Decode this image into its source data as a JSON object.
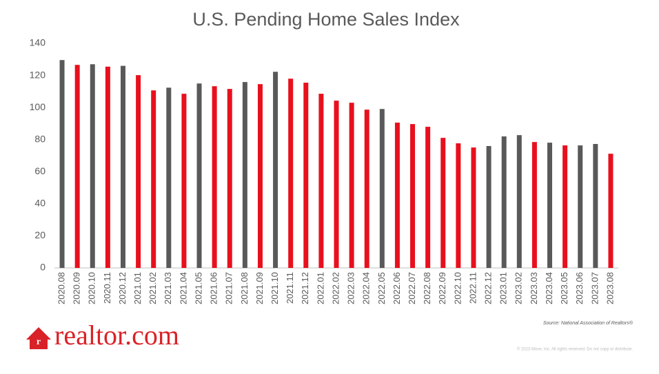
{
  "chart_data": {
    "type": "bar",
    "title": "U.S. Pending Home Sales Index",
    "categories": [
      "2020.08",
      "2020.09",
      "2020.10",
      "2020.11",
      "2020.12",
      "2021.01",
      "2021.02",
      "2021.03",
      "2021.04",
      "2021.05",
      "2021.06",
      "2021.07",
      "2021.08",
      "2021.09",
      "2021.10",
      "2021.11",
      "2021.12",
      "2022.01",
      "2022.02",
      "2022.03",
      "2022.04",
      "2022.05",
      "2022.06",
      "2022.07",
      "2022.08",
      "2022.09",
      "2022.10",
      "2022.11",
      "2022.12",
      "2023.01",
      "2023.02",
      "2023.03",
      "2023.04",
      "2023.05",
      "2023.06",
      "2023.07",
      "2023.08"
    ],
    "values": [
      129.6,
      126.6,
      127,
      125.5,
      126,
      120.2,
      110.7,
      112.4,
      108.6,
      115,
      113.3,
      111.6,
      115.9,
      114.6,
      122.3,
      118,
      115.5,
      108.6,
      104.3,
      103,
      98.7,
      99.1,
      90.6,
      89.7,
      88,
      81.1,
      77.7,
      75.1,
      76,
      82,
      82.8,
      78.5,
      78.1,
      76.4,
      76.4,
      77.3,
      71.2
    ],
    "colors": [
      "#595959",
      "#e8101d",
      "#595959",
      "#e8101d",
      "#595959",
      "#e8101d",
      "#e8101d",
      "#595959",
      "#e8101d",
      "#595959",
      "#e8101d",
      "#e8101d",
      "#595959",
      "#e8101d",
      "#595959",
      "#e8101d",
      "#e8101d",
      "#e8101d",
      "#e8101d",
      "#e8101d",
      "#e8101d",
      "#595959",
      "#e8101d",
      "#e8101d",
      "#e8101d",
      "#e8101d",
      "#e8101d",
      "#e8101d",
      "#595959",
      "#595959",
      "#595959",
      "#e8101d",
      "#595959",
      "#e8101d",
      "#595959",
      "#595959",
      "#e8101d"
    ],
    "ylim": [
      0,
      140
    ],
    "yticks": [
      0,
      20,
      40,
      60,
      80,
      100,
      120,
      140
    ],
    "grid": false,
    "source": "Source: National Association of Realtors®",
    "logo": "realtor.com",
    "copyright": "© 2023 Move, Inc. All rights reserved. Do not copy or distribute."
  }
}
